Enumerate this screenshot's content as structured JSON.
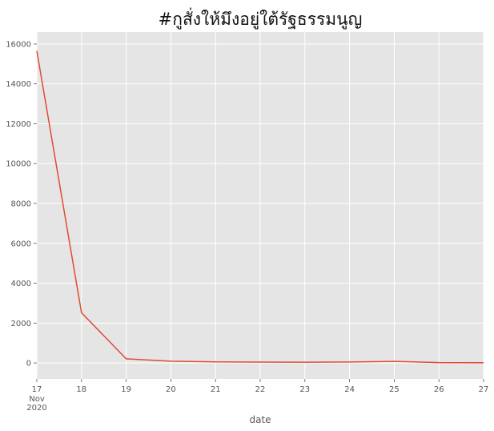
{
  "chart_data": {
    "type": "line",
    "title": "#กูสั่งให้มึงอยู่ใต้รัฐธรรมนูญ",
    "xlabel": "date",
    "ylabel": "",
    "x": [
      "17",
      "18",
      "19",
      "20",
      "21",
      "22",
      "23",
      "24",
      "25",
      "26",
      "27"
    ],
    "x_sublabels": {
      "month": "Nov",
      "year": "2020"
    },
    "series": [
      {
        "values": [
          15650,
          2520,
          210,
          90,
          55,
          45,
          40,
          50,
          80,
          20,
          15
        ],
        "color": "#e24a33"
      }
    ],
    "yticks": [
      "0",
      "2000",
      "4000",
      "6000",
      "8000",
      "10000",
      "12000",
      "14000",
      "16000"
    ],
    "ylim": [
      -800,
      16600
    ],
    "grid": true,
    "background": "#e5e5e5",
    "grid_color": "#ffffff"
  }
}
